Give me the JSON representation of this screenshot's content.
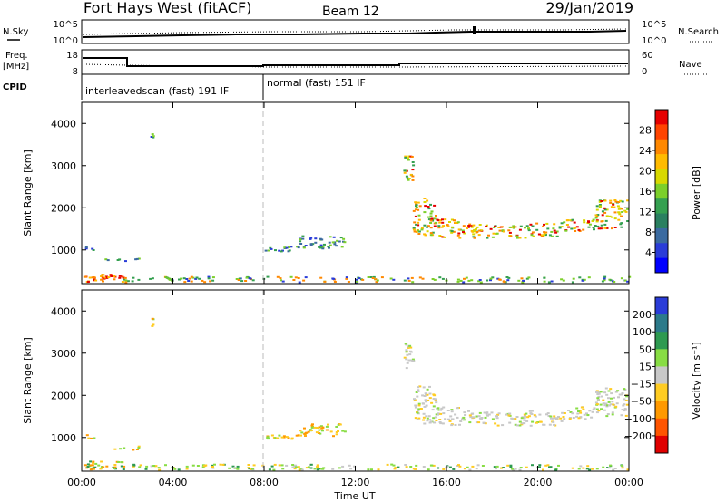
{
  "header": {
    "station": "Fort Hays West (fitACF)",
    "beam": "Beam 12",
    "date": "29/Jan/2019"
  },
  "noise_panel": {
    "left_label": "N.Sky",
    "left_ticks": [
      "10^5",
      "10^0"
    ],
    "right_label": "N.Search",
    "right_ticks": [
      "10^5",
      "10^0"
    ]
  },
  "freq_panel": {
    "left_label_1": "Freq.",
    "left_label_2": "[MHz]",
    "left_ticks": [
      "18",
      "8"
    ],
    "right_label": "Nave",
    "right_ticks": [
      "60",
      "0"
    ],
    "cpid_label": "CPID",
    "modes": [
      {
        "label": "interleavedscan (fast) 191 IF",
        "start_hour": 0
      },
      {
        "label": "normal (fast) 151 IF",
        "start_hour": 8
      }
    ]
  },
  "chart_data": [
    {
      "type": "heatmap",
      "name": "power",
      "ylabel": "Slant Range [km]",
      "yticks": [
        "1000",
        "2000",
        "3000",
        "4000"
      ],
      "ylim": [
        200,
        4500
      ],
      "xlim": [
        0,
        24
      ],
      "colorbar": {
        "label": "Power [dB]",
        "ticks": [
          "28",
          "24",
          "20",
          "16",
          "12",
          "8",
          "4"
        ],
        "colors": [
          "#e60000",
          "#ff4400",
          "#ff8800",
          "#ffbb00",
          "#d8d800",
          "#7ccf2a",
          "#35a050",
          "#2a8060",
          "#3a6aa0",
          "#2a3cd8",
          "#0000ff"
        ]
      }
    },
    {
      "type": "heatmap",
      "name": "velocity",
      "ylabel": "Slant Range [km]",
      "yticks": [
        "1000",
        "2000",
        "3000",
        "4000"
      ],
      "ylim": [
        200,
        4500
      ],
      "xlim": [
        0,
        24
      ],
      "xlabel": "Time UT",
      "xticks": [
        "00:00",
        "04:00",
        "08:00",
        "12:00",
        "16:00",
        "20:00",
        "00:00"
      ],
      "colorbar": {
        "label": "Velocity [m s⁻¹]",
        "ticks": [
          "200",
          "100",
          "50",
          "15",
          "−15",
          "−50",
          "−100",
          "−200"
        ],
        "colors": [
          "#2a3cd8",
          "#2c7a8a",
          "#2e9a50",
          "#88dd44",
          "#c8c8c8",
          "#ffcc22",
          "#ff9900",
          "#ff5500",
          "#e00000"
        ]
      }
    }
  ]
}
